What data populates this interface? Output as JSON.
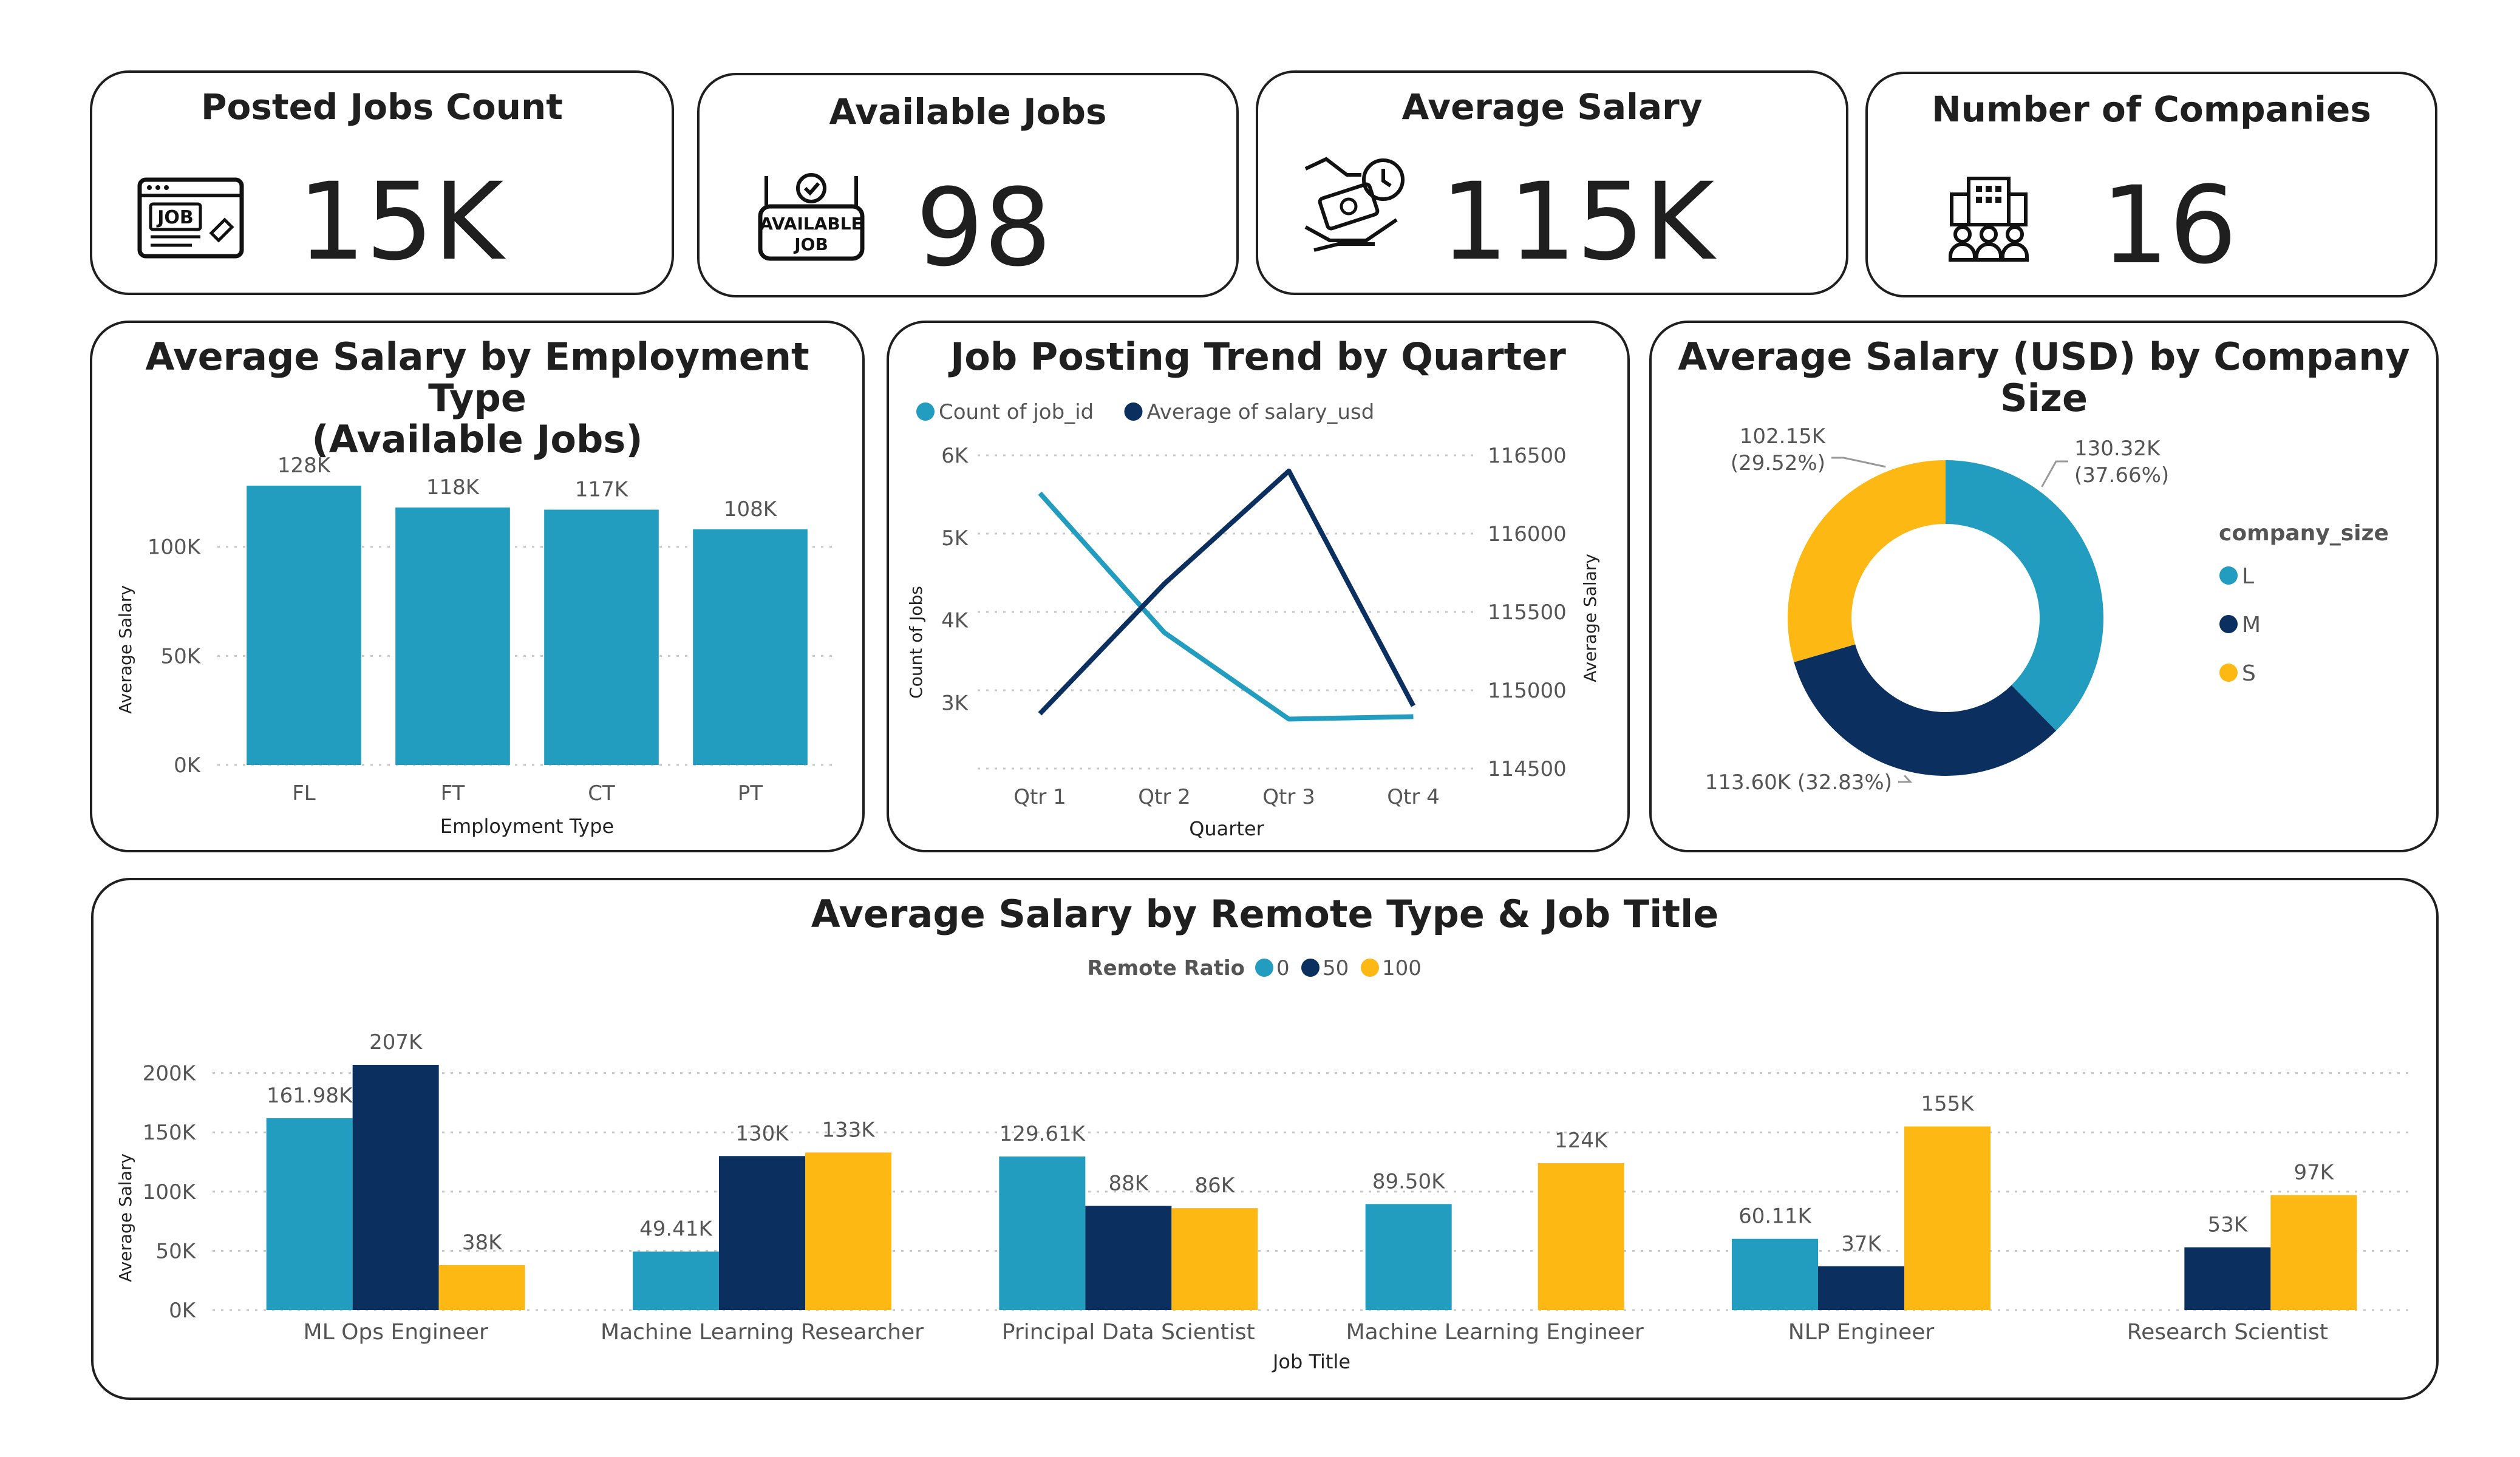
{
  "kpis": {
    "posted": {
      "title": "Posted Jobs Count",
      "value": "15K",
      "icon": "job-browser-icon",
      "icon_text": "JOB"
    },
    "available": {
      "title": "Available Jobs",
      "value": "98",
      "icon": "available-job-icon",
      "icon_text1": "AVAILABLE",
      "icon_text2": "JOB"
    },
    "salary": {
      "title": "Average Salary",
      "value": "115K",
      "icon": "salary-hand-icon"
    },
    "companies": {
      "title": "Number of Companies",
      "value": "16",
      "icon": "company-building-icon"
    }
  },
  "charts": {
    "employment": {
      "title_line1": "Average Salary by Employment Type",
      "title_line2": "(Available Jobs)"
    },
    "quarter": {
      "title": "Job Posting Trend by Quarter"
    },
    "company": {
      "title": "Average Salary (USD) by Company Size"
    },
    "remote": {
      "title": "Average Salary by Remote Type & Job Title"
    }
  },
  "colors": {
    "teal": "#229DBF",
    "navy": "#0B3060",
    "gold": "#FDB813"
  },
  "chart_data": [
    {
      "id": "employment",
      "type": "bar",
      "title": "Average Salary by Employment Type (Available Jobs)",
      "categories": [
        "FL",
        "FT",
        "CT",
        "PT"
      ],
      "values": [
        128000,
        118000,
        117000,
        108000
      ],
      "value_labels": [
        "128K",
        "118K",
        "117K",
        "108K"
      ],
      "xlabel": "Employment Type",
      "ylabel": "Average Salary",
      "ylim": [
        0,
        128000
      ],
      "yticks": [
        0,
        50000,
        100000
      ],
      "ytick_labels": [
        "0K",
        "50K",
        "100K"
      ],
      "grid": true
    },
    {
      "id": "quarter",
      "type": "line",
      "title": "Job Posting Trend by Quarter",
      "categories": [
        "Qtr 1",
        "Qtr 2",
        "Qtr 3",
        "Qtr 4"
      ],
      "series": [
        {
          "name": "Count of job_id",
          "axis": "left",
          "values": [
            5540,
            3850,
            2800,
            2830
          ]
        },
        {
          "name": "Average of salary_usd",
          "axis": "right",
          "values": [
            114850,
            115680,
            116400,
            114900
          ]
        }
      ],
      "xlabel": "Quarter",
      "ylabel_left": "Count of Jobs",
      "ylabel_right": "Average Salary",
      "ylim_left": [
        2200,
        6000
      ],
      "yticks_left": [
        3000,
        4000,
        5000,
        6000
      ],
      "ytick_labels_left": [
        "3K",
        "4K",
        "5K",
        "6K"
      ],
      "ylim_right": [
        114500,
        116500
      ],
      "yticks_right": [
        114500,
        115000,
        115500,
        116000,
        116500
      ],
      "ytick_labels_right": [
        "114500",
        "115000",
        "115500",
        "116000",
        "116500"
      ],
      "legend": "top-left",
      "grid": true
    },
    {
      "id": "company",
      "type": "pie",
      "title": "Average Salary (USD) by Company Size",
      "legend_title": "company_size",
      "labels": [
        "L",
        "M",
        "S"
      ],
      "values": [
        130.32,
        113.6,
        102.15
      ],
      "percents": [
        37.66,
        32.83,
        29.52
      ],
      "value_labels": [
        "130.32K",
        "113.60K",
        "102.15K"
      ],
      "percent_labels": [
        "(37.66%)",
        "(32.83%)",
        "(29.52%)"
      ],
      "combined_label_m": "113.60K (32.83%)",
      "legend": "right"
    },
    {
      "id": "remote",
      "type": "bar",
      "title": "Average Salary by Remote Type & Job Title",
      "legend_title": "Remote Ratio",
      "categories": [
        "ML Ops Engineer",
        "Machine Learning Researcher",
        "Principal Data Scientist",
        "Machine Learning Engineer",
        "NLP Engineer",
        "Research Scientist"
      ],
      "series": [
        {
          "name": "0",
          "values": [
            161980,
            49410,
            129610,
            89500,
            60110,
            null
          ],
          "labels": [
            "161.98K",
            "49.41K",
            "129.61K",
            "89.50K",
            "60.11K",
            ""
          ]
        },
        {
          "name": "50",
          "values": [
            207000,
            130000,
            88000,
            null,
            37000,
            53000
          ],
          "labels": [
            "207K",
            "130K",
            "88K",
            "",
            "37K",
            "53K"
          ]
        },
        {
          "name": "100",
          "values": [
            38000,
            133000,
            86000,
            124000,
            155000,
            97000
          ],
          "labels": [
            "38K",
            "133K",
            "86K",
            "124K",
            "155K",
            "97K"
          ]
        }
      ],
      "xlabel": "Job Title",
      "ylabel": "Average Salary",
      "ylim": [
        0,
        207000
      ],
      "yticks": [
        0,
        50000,
        100000,
        150000,
        200000
      ],
      "ytick_labels": [
        "0K",
        "50K",
        "100K",
        "150K",
        "200K"
      ],
      "legend": "top-center",
      "grid": true
    }
  ]
}
